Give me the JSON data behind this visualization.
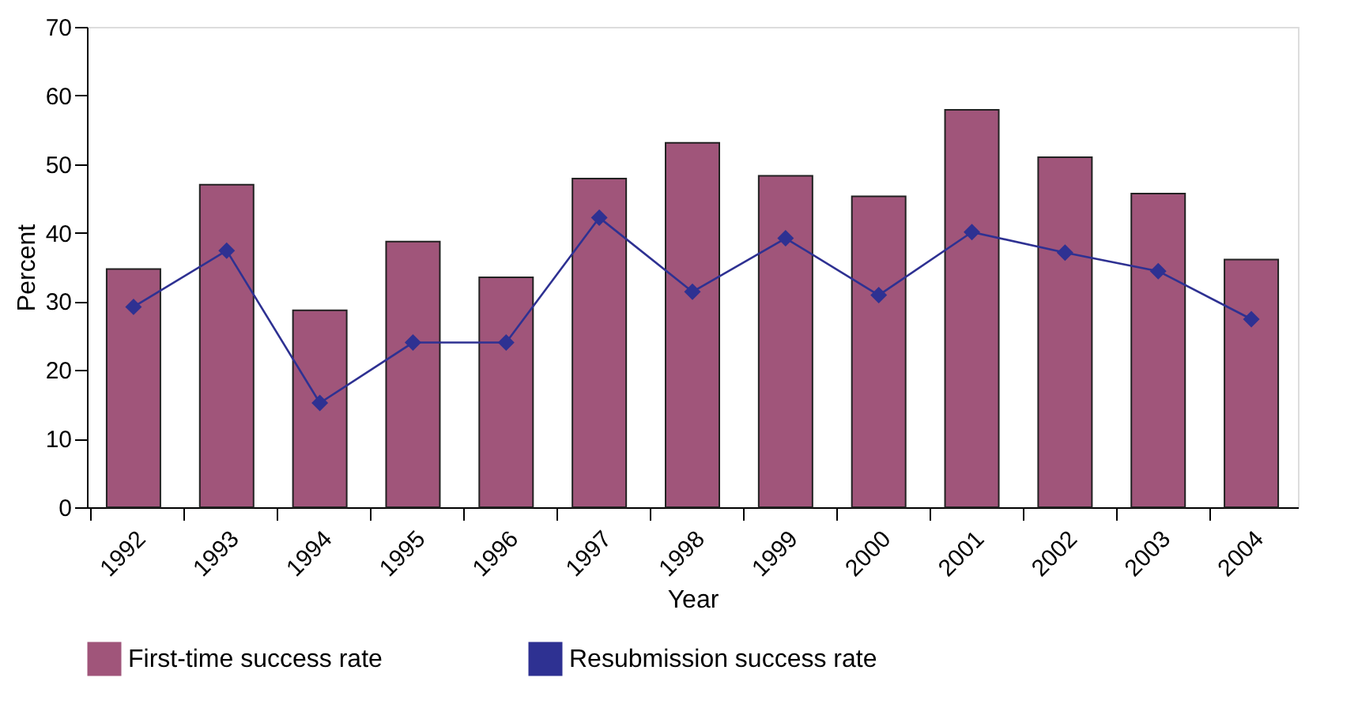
{
  "chart_data": {
    "type": "bar",
    "xlabel": "Year",
    "ylabel": "Percent",
    "categories": [
      "1992",
      "1993",
      "1994",
      "1995",
      "1996",
      "1997",
      "1998",
      "1999",
      "2000",
      "2001",
      "2002",
      "2003",
      "2004"
    ],
    "series": [
      {
        "name": "First-time success rate",
        "color": "#a0557a",
        "values": [
          34.7,
          47,
          28.7,
          38.7,
          33.5,
          47.9,
          53.1,
          48.3,
          45.3,
          57.9,
          51,
          45.7,
          36.1
        ]
      },
      {
        "name": "Resubmission success rate",
        "type": "line",
        "color": "#2e3192",
        "marker": "diamond",
        "values": [
          29.2,
          37.4,
          15.2,
          24,
          24,
          42.2,
          31.4,
          39.2,
          30.9,
          40.1,
          37.1,
          34.4,
          27.4
        ]
      }
    ],
    "ylim": [
      0,
      70
    ],
    "yticks": [
      0,
      10,
      20,
      30,
      40,
      50,
      60,
      70
    ],
    "grid": false,
    "legend": "bottom"
  }
}
